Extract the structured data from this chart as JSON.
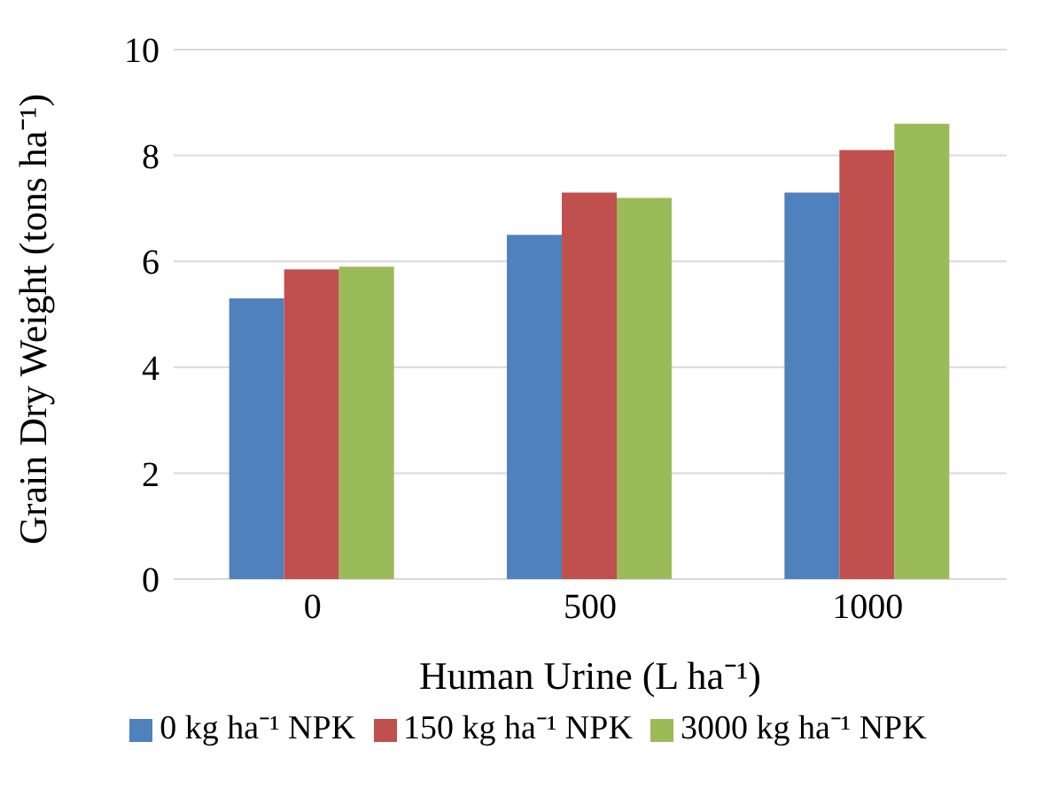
{
  "chart_data": {
    "type": "bar",
    "xlabel": "Human Urine (L ha⁻¹)",
    "ylabel": "Grain Dry Weight (tons ha⁻¹)",
    "categories": [
      "0",
      "500",
      "1000"
    ],
    "series": [
      {
        "name": "0 kg ha⁻¹ NPK",
        "color": "#4f81bd",
        "values": [
          5.3,
          6.5,
          7.3
        ]
      },
      {
        "name": "150 kg ha⁻¹ NPK",
        "color": "#c0504d",
        "values": [
          5.85,
          7.3,
          8.1
        ]
      },
      {
        "name": "3000 kg ha⁻¹ NPK",
        "color": "#9bbb59",
        "values": [
          5.9,
          7.2,
          8.6
        ]
      }
    ],
    "ylim": [
      0,
      10
    ],
    "yticks": [
      0,
      2,
      4,
      6,
      8,
      10
    ],
    "grid": "y",
    "legend": "bottom"
  }
}
